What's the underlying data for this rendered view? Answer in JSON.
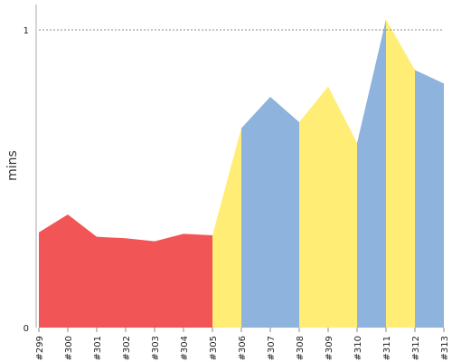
{
  "chart_data": {
    "type": "area",
    "ylabel": "mins",
    "xlabel": "",
    "title": "",
    "ylim": [
      0,
      1.1
    ],
    "yticks": [
      0,
      1
    ],
    "reference_line": {
      "y": 1,
      "style": "dotted"
    },
    "grid": false,
    "legend": "none",
    "categories": [
      "#299",
      "#300",
      "#301",
      "#302",
      "#303",
      "#304",
      "#305",
      "#306",
      "#307",
      "#308",
      "#309",
      "#310",
      "#311",
      "#312",
      "#313"
    ],
    "values": [
      0.32,
      0.38,
      0.305,
      0.3,
      0.29,
      0.315,
      0.31,
      0.67,
      0.775,
      0.69,
      0.81,
      0.62,
      1.035,
      0.865,
      0.82
    ],
    "segments": [
      {
        "from": 0,
        "to": 6,
        "color": "#f25555"
      },
      {
        "from": 6,
        "to": 7,
        "color": "#ffed75"
      },
      {
        "from": 7,
        "to": 9,
        "color": "#8eb3dc"
      },
      {
        "from": 9,
        "to": 11,
        "color": "#ffed75"
      },
      {
        "from": 11,
        "to": 12,
        "color": "#8eb3dc"
      },
      {
        "from": 12,
        "to": 13,
        "color": "#ffed75"
      },
      {
        "from": 13,
        "to": 14,
        "color": "#8eb3dc"
      }
    ]
  }
}
